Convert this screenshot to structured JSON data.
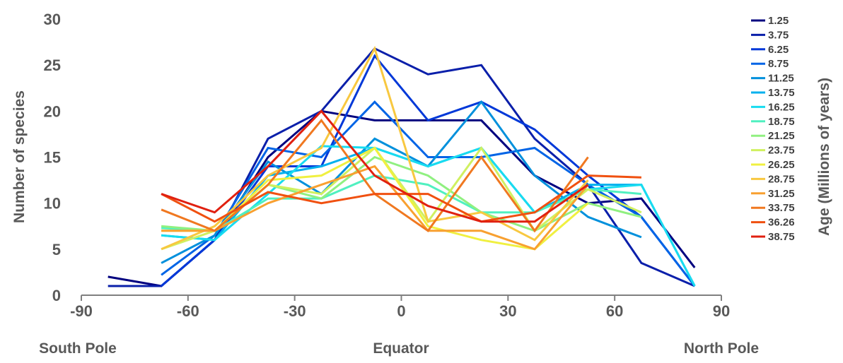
{
  "chart_data": {
    "type": "line",
    "xlabel_sub": {
      "left": "South Pole",
      "center": "Equator",
      "right": "North Pole"
    },
    "ylabel": "Number of species",
    "legend_title": "Age (Millions of years)",
    "legend_placement": "right",
    "xlim": [
      -90,
      90
    ],
    "ylim": [
      0,
      30
    ],
    "xticks": [
      -90,
      -60,
      -30,
      0,
      30,
      60,
      90
    ],
    "yticks": [
      0,
      5,
      10,
      15,
      20,
      25,
      30
    ],
    "grid": false,
    "x": [
      -82.5,
      -67.5,
      -52.5,
      -37.5,
      -22.5,
      -7.5,
      7.5,
      22.5,
      37.5,
      52.5,
      67.5,
      82.5
    ],
    "series": [
      {
        "name": "1.25",
        "color": "#00007f",
        "values": [
          2,
          1,
          6,
          15,
          20,
          19,
          19,
          19,
          13,
          10,
          10.5,
          3
        ]
      },
      {
        "name": "3.75",
        "color": "#0a1faa",
        "values": [
          1,
          1,
          6,
          17,
          20,
          26.8,
          24,
          25,
          17,
          12,
          3.5,
          1
        ]
      },
      {
        "name": "6.25",
        "color": "#0038d8",
        "values": [
          null,
          1,
          6,
          14,
          14,
          26,
          19,
          21,
          18,
          13,
          8.5,
          1
        ]
      },
      {
        "name": "8.75",
        "color": "#0064e6",
        "values": [
          null,
          2.2,
          6.5,
          16,
          15,
          21,
          15,
          15,
          16,
          12,
          8.5,
          1
        ]
      },
      {
        "name": "11.25",
        "color": "#0090dc",
        "values": [
          null,
          3.5,
          6.5,
          14.5,
          11,
          17,
          14,
          21,
          13,
          8.5,
          6.3,
          null
        ]
      },
      {
        "name": "13.75",
        "color": "#00b0ee",
        "values": [
          null,
          6.5,
          6,
          13,
          14,
          16,
          14,
          16,
          9,
          12,
          12,
          1
        ]
      },
      {
        "name": "16.25",
        "color": "#18dcf0",
        "values": [
          null,
          6.5,
          6,
          11,
          16.2,
          16,
          14,
          16,
          9,
          11.5,
          12,
          1
        ]
      },
      {
        "name": "18.75",
        "color": "#50f0c0",
        "values": [
          null,
          7.3,
          7,
          10.5,
          10.5,
          13,
          12,
          9,
          9,
          11.5,
          11,
          null
        ]
      },
      {
        "name": "21.25",
        "color": "#90f080",
        "values": [
          null,
          7.5,
          7,
          12,
          10.5,
          15,
          13,
          9,
          7,
          10,
          8.5,
          null
        ]
      },
      {
        "name": "23.75",
        "color": "#d0f060",
        "values": [
          null,
          5,
          7,
          12,
          11,
          16,
          8,
          16,
          7,
          11.5,
          9,
          null
        ]
      },
      {
        "name": "26.25",
        "color": "#f0f040",
        "values": [
          null,
          7,
          7,
          12.5,
          13,
          16,
          7.5,
          6,
          5,
          10,
          null,
          null
        ]
      },
      {
        "name": "28.75",
        "color": "#f8c840",
        "values": [
          null,
          5,
          7.5,
          13,
          16,
          26.8,
          8,
          9,
          6,
          12.5,
          null,
          null
        ]
      },
      {
        "name": "31.25",
        "color": "#f8a030",
        "values": [
          null,
          7,
          7,
          10,
          12,
          14,
          7,
          7,
          5,
          12,
          null,
          null
        ]
      },
      {
        "name": "33.75",
        "color": "#f07820",
        "values": [
          null,
          9.3,
          7,
          12,
          19,
          11,
          7,
          15,
          7,
          15,
          null,
          null
        ]
      },
      {
        "name": "36.26",
        "color": "#f05010",
        "values": [
          null,
          11,
          8,
          11.2,
          10,
          11,
          11,
          8,
          9,
          13,
          12.8,
          null
        ]
      },
      {
        "name": "38.75",
        "color": "#e02010",
        "values": [
          null,
          11,
          9,
          14,
          20,
          13,
          9.7,
          8,
          8,
          12,
          null,
          null
        ]
      }
    ]
  }
}
